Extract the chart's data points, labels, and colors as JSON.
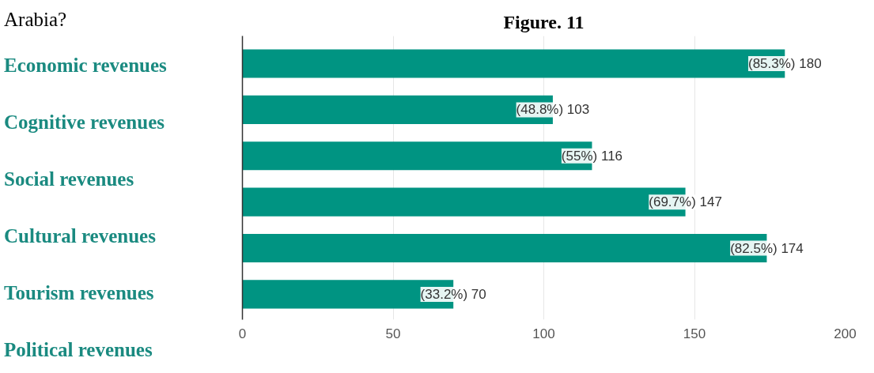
{
  "chart_data": {
    "type": "bar",
    "orientation": "horizontal",
    "title": "Figure. 11",
    "categories": [
      null,
      null,
      null,
      null,
      null,
      null
    ],
    "values": [
      180,
      103,
      116,
      147,
      174,
      70
    ],
    "value_labels": [
      "(85.3%) 180",
      "(48.8%) 103",
      "(55%) 116",
      "(69.7%) 147",
      "(82.5%) 174",
      "(33.2%) 70"
    ],
    "color": "#009482",
    "xlim": [
      0,
      200
    ],
    "xticks": [
      0,
      50,
      100,
      150,
      200
    ],
    "grid": "x",
    "annotations": [
      "Arabia?",
      "Economic revenues",
      "Cognitive revenues",
      "Social revenues",
      "Cultural revenues",
      "Tourism revenues",
      "Political revenues"
    ]
  }
}
